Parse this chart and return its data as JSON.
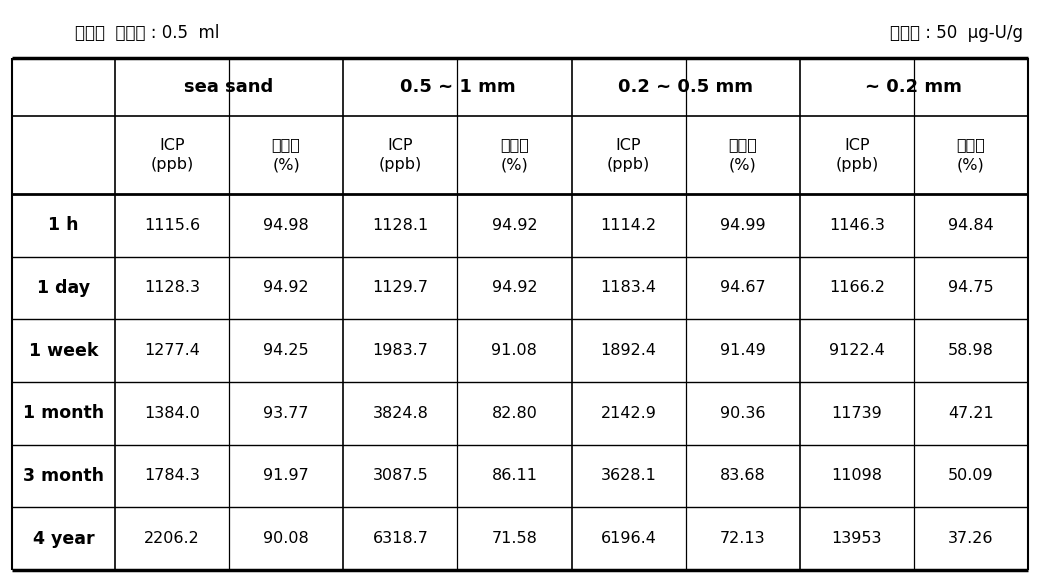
{
  "top_left_label": "추출제  사용량 : 0.5  ml",
  "top_right_label": "오염량 : 50  μg-U/g",
  "col_groups": [
    "sea sand",
    "0.5 ~ 1 mm",
    "0.2 ~ 0.5 mm",
    "~ 0.2 mm"
  ],
  "sub_col_line1": [
    "ICP",
    "추출률",
    "ICP",
    "추출률",
    "ICP",
    "추출률",
    "ICP",
    "추출률"
  ],
  "sub_col_line2": [
    "(ppb)",
    "(%)",
    "(ppb)",
    "(%)",
    "(ppb)",
    "(%)",
    "(ppb)",
    "(%)"
  ],
  "row_labels": [
    "1 h",
    "1 day",
    "1 week",
    "1 month",
    "3 month",
    "4 year"
  ],
  "data": [
    [
      "1115.6",
      "94.98",
      "1128.1",
      "94.92",
      "1114.2",
      "94.99",
      "1146.3",
      "94.84"
    ],
    [
      "1128.3",
      "94.92",
      "1129.7",
      "94.92",
      "1183.4",
      "94.67",
      "1166.2",
      "94.75"
    ],
    [
      "1277.4",
      "94.25",
      "1983.7",
      "91.08",
      "1892.4",
      "91.49",
      "9122.4",
      "58.98"
    ],
    [
      "1384.0",
      "93.77",
      "3824.8",
      "82.80",
      "2142.9",
      "90.36",
      "11739",
      "47.21"
    ],
    [
      "1784.3",
      "91.97",
      "3087.5",
      "86.11",
      "3628.1",
      "83.68",
      "11098",
      "50.09"
    ],
    [
      "2206.2",
      "90.08",
      "6318.7",
      "71.58",
      "6196.4",
      "72.13",
      "13953",
      "37.26"
    ]
  ],
  "background_color": "#ffffff",
  "text_color": "#000000"
}
